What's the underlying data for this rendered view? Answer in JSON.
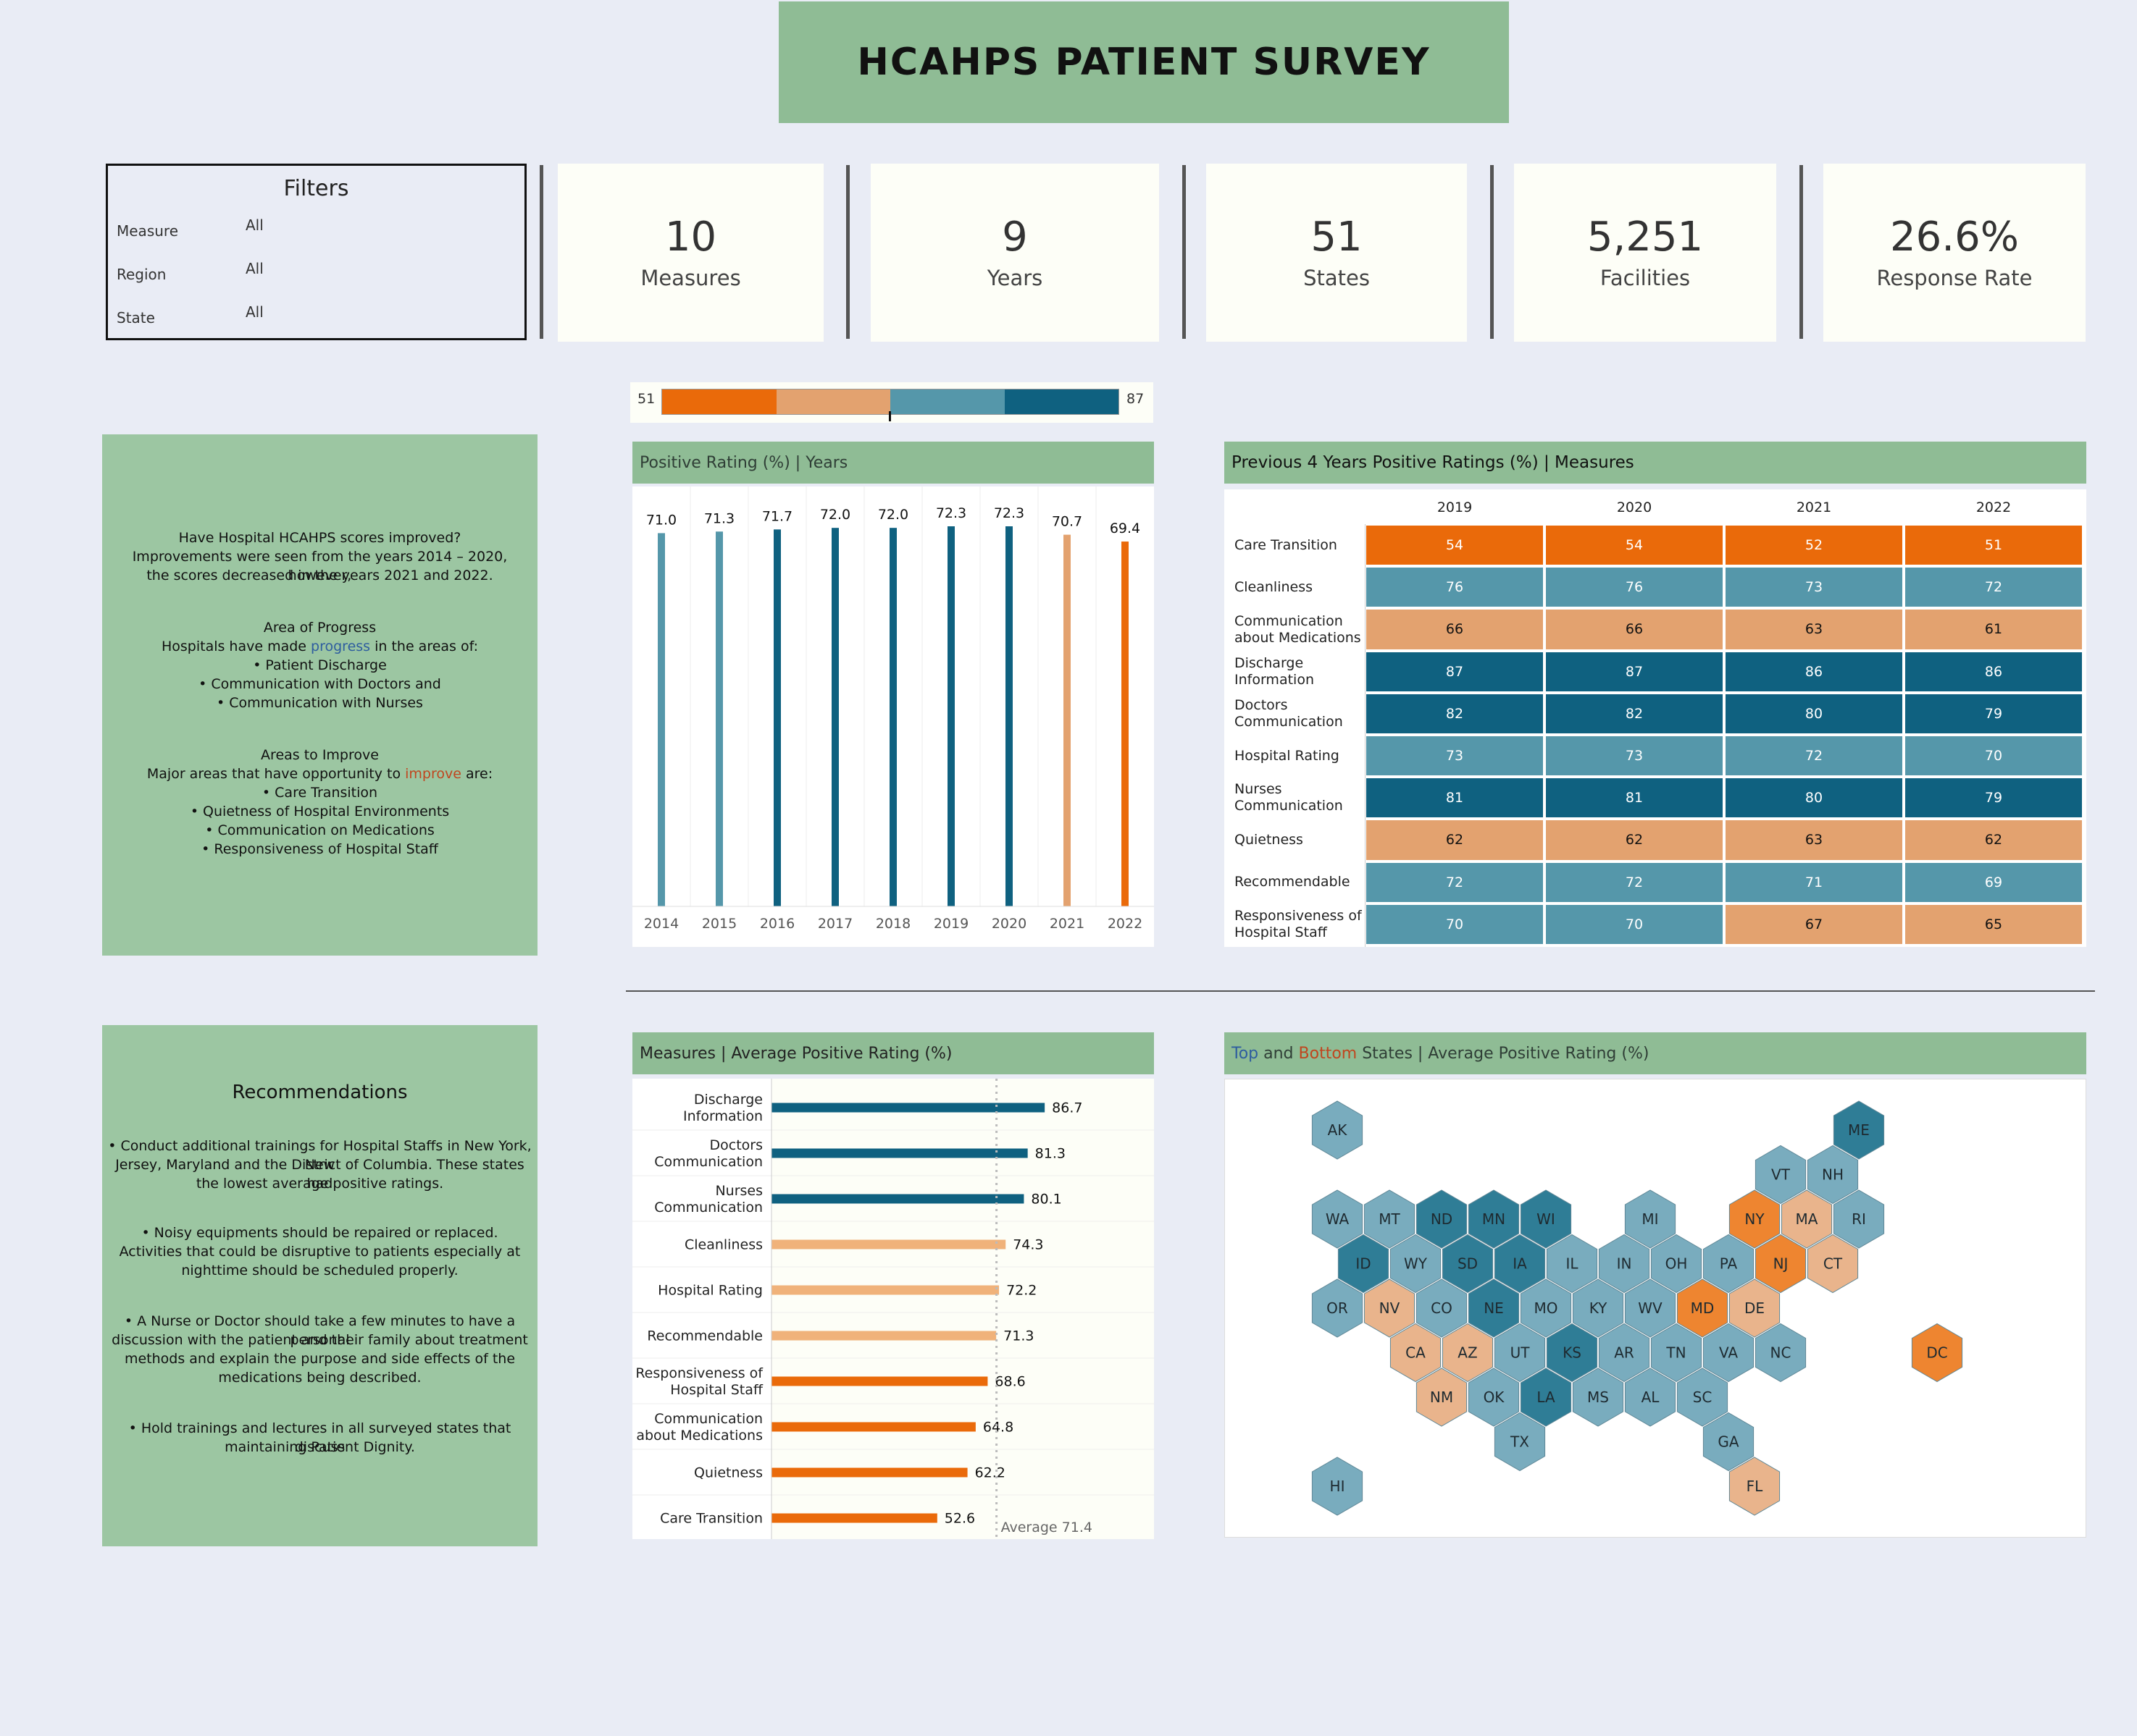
{
  "title": "HCAHPS PATIENT SURVEY",
  "filters": {
    "title": "Filters",
    "items": [
      {
        "label": "Measure",
        "value": "All"
      },
      {
        "label": "Region",
        "value": "All"
      },
      {
        "label": "State",
        "value": "All"
      }
    ]
  },
  "kpis": [
    {
      "value": "10",
      "label": "Measures"
    },
    {
      "value": "9",
      "label": "Years"
    },
    {
      "value": "51",
      "label": "States"
    },
    {
      "value": "5,251",
      "label": "Facilities"
    },
    {
      "value": "26.6%",
      "label": "Response Rate"
    }
  ],
  "color_legend": {
    "min": "51",
    "max": "87",
    "colors": [
      "#ea6a0a",
      "#e3a26f",
      "#5597aa",
      "#0f6180"
    ]
  },
  "colors": {
    "dark_blue": "#0f6180",
    "mid_blue": "#5597aa",
    "light_orange": "#e3a26f",
    "orange": "#ea6a0a",
    "header_green": "#8fbc95",
    "note_green": "#9cc6a2",
    "progress": "#2e5d9f",
    "improve": "#c0461f"
  },
  "insights": {
    "q_title": "Have Hospital HCAHPS scores improved?",
    "q_line1": "Improvements were seen from the years 2014 – 2020, however,",
    "q_line2": "the scores decreased in the years 2021 and 2022.",
    "progress_title": "Area of Progress",
    "progress_pre": "Hospitals have made ",
    "progress_word": "progress",
    "progress_post": " in the areas of:",
    "progress_items": [
      "• Patient Discharge",
      "• Communication with Doctors and",
      "• Communication with Nurses"
    ],
    "improve_title": "Areas to Improve",
    "improve_pre": "Major areas that have opportunity to ",
    "improve_word": "improve",
    "improve_post": " are:",
    "improve_items": [
      "• Care Transition",
      "• Quietness of Hospital Environments",
      "• Communication on Medications",
      "• Responsiveness of Hospital Staff"
    ]
  },
  "recommendations": {
    "title": "Recommendations",
    "items": [
      [
        "• Conduct additional trainings for Hospital Staffs in New York, New",
        "Jersey, Maryland and the District of Columbia. These states had",
        "the lowest average positive ratings."
      ],
      [
        "• Noisy equipments should be repaired or replaced.",
        "Activities that could be disruptive to patients especially at",
        "nighttime should be scheduled properly."
      ],
      [
        "• A Nurse or Doctor should take a few minutes to have a personal",
        "discussion with the patient and their family about treatment",
        "methods and explain the purpose and side effects of the",
        "medications being described."
      ],
      [
        "• Hold trainings and lectures in all surveyed states that discuss",
        "maintaining Patient Dignity."
      ]
    ]
  },
  "chart_data": [
    {
      "type": "bar",
      "title": "Positive Rating (%) | Years",
      "categories": [
        "2014",
        "2015",
        "2016",
        "2017",
        "2018",
        "2019",
        "2020",
        "2021",
        "2022"
      ],
      "values": [
        71.0,
        71.3,
        71.7,
        72.0,
        72.0,
        72.3,
        72.3,
        70.7,
        69.4
      ],
      "value_labels": [
        "71.0",
        "71.3",
        "71.7",
        "72.0",
        "72.0",
        "72.3",
        "72.3",
        "70.7",
        "69.4"
      ],
      "bar_colors": [
        "#5597aa",
        "#5597aa",
        "#0f6180",
        "#0f6180",
        "#0f6180",
        "#0f6180",
        "#0f6180",
        "#e3a26f",
        "#ea6a0a"
      ],
      "ylim": [
        0,
        72.3
      ]
    },
    {
      "type": "heatmap",
      "title": "Previous 4 Years Positive Ratings (%) | Measures",
      "columns": [
        "2019",
        "2020",
        "2021",
        "2022"
      ],
      "rows": [
        {
          "name": [
            "Care Transition"
          ],
          "values": [
            54,
            54,
            52,
            51
          ]
        },
        {
          "name": [
            "Cleanliness"
          ],
          "values": [
            76,
            76,
            73,
            72
          ]
        },
        {
          "name": [
            "Communication",
            "about Medications"
          ],
          "values": [
            66,
            66,
            63,
            61
          ]
        },
        {
          "name": [
            "Discharge",
            "Information"
          ],
          "values": [
            87,
            87,
            86,
            86
          ]
        },
        {
          "name": [
            "Doctors",
            "Communication"
          ],
          "values": [
            82,
            82,
            80,
            79
          ]
        },
        {
          "name": [
            "Hospital Rating"
          ],
          "values": [
            73,
            73,
            72,
            70
          ]
        },
        {
          "name": [
            "Nurses",
            "Communication"
          ],
          "values": [
            81,
            81,
            80,
            79
          ]
        },
        {
          "name": [
            "Quietness"
          ],
          "values": [
            62,
            62,
            63,
            62
          ]
        },
        {
          "name": [
            "Recommendable"
          ],
          "values": [
            72,
            72,
            71,
            69
          ]
        },
        {
          "name": [
            "Responsiveness of",
            "Hospital Staff"
          ],
          "values": [
            70,
            70,
            67,
            65
          ]
        }
      ]
    },
    {
      "type": "bar",
      "orientation": "horizontal",
      "title": "Measures | Average Positive Rating (%)",
      "categories": [
        [
          "Discharge",
          "Information"
        ],
        [
          "Doctors",
          "Communication"
        ],
        [
          "Nurses",
          "Communication"
        ],
        [
          "Cleanliness"
        ],
        [
          "Hospital Rating"
        ],
        [
          "Recommendable"
        ],
        [
          "Responsiveness of",
          "Hospital Staff"
        ],
        [
          "Communication",
          "about Medications"
        ],
        [
          "Quietness"
        ],
        [
          "Care Transition"
        ]
      ],
      "values": [
        86.7,
        81.3,
        80.1,
        74.3,
        72.2,
        71.3,
        68.6,
        64.8,
        62.2,
        52.6
      ],
      "value_labels": [
        "86.7",
        "81.3",
        "80.1",
        "74.3",
        "72.2",
        "71.3",
        "68.6",
        "64.8",
        "62.2",
        "52.6"
      ],
      "bar_colors": [
        "#0f6180",
        "#0f6180",
        "#0f6180",
        "#f0b27a",
        "#f0b27a",
        "#f0b27a",
        "#ea6a0a",
        "#ea6a0a",
        "#ea6a0a",
        "#ea6a0a"
      ],
      "reference_line": {
        "value": 71.4,
        "label": "Average 71.4"
      },
      "xlim": [
        0,
        90
      ]
    },
    {
      "type": "map",
      "title_parts": [
        "Top",
        " and ",
        "Bottom",
        " States | Average Positive Rating (%)"
      ],
      "states": [
        {
          "abbr": "AK",
          "col": 0,
          "row": 0,
          "color": "#79acbe"
        },
        {
          "abbr": "ME",
          "col": 10,
          "row": 0,
          "color": "#2f7d96"
        },
        {
          "abbr": "VT",
          "col": 8,
          "row": 1,
          "color": "#79acbe"
        },
        {
          "abbr": "NH",
          "col": 9,
          "row": 1,
          "color": "#79acbe"
        },
        {
          "abbr": "WA",
          "col": 0,
          "row": 2,
          "color": "#79acbe"
        },
        {
          "abbr": "MT",
          "col": 1,
          "row": 2,
          "color": "#79acbe"
        },
        {
          "abbr": "ND",
          "col": 2,
          "row": 2,
          "color": "#2f7d96"
        },
        {
          "abbr": "MN",
          "col": 3,
          "row": 2,
          "color": "#2f7d96"
        },
        {
          "abbr": "WI",
          "col": 4,
          "row": 2,
          "color": "#2f7d96"
        },
        {
          "abbr": "MI",
          "col": 6,
          "row": 2,
          "color": "#79acbe"
        },
        {
          "abbr": "NY",
          "col": 8,
          "row": 2,
          "color": "#ee8530"
        },
        {
          "abbr": "MA",
          "col": 9,
          "row": 2,
          "color": "#e9b48c"
        },
        {
          "abbr": "RI",
          "col": 10,
          "row": 2,
          "color": "#79acbe"
        },
        {
          "abbr": "ID",
          "col": 0,
          "row": 3,
          "color": "#2f7d96"
        },
        {
          "abbr": "WY",
          "col": 1,
          "row": 3,
          "color": "#79acbe"
        },
        {
          "abbr": "SD",
          "col": 2,
          "row": 3,
          "color": "#2f7d96"
        },
        {
          "abbr": "IA",
          "col": 3,
          "row": 3,
          "color": "#2f7d96"
        },
        {
          "abbr": "IL",
          "col": 4,
          "row": 3,
          "color": "#79acbe"
        },
        {
          "abbr": "IN",
          "col": 5,
          "row": 3,
          "color": "#79acbe"
        },
        {
          "abbr": "OH",
          "col": 6,
          "row": 3,
          "color": "#79acbe"
        },
        {
          "abbr": "PA",
          "col": 7,
          "row": 3,
          "color": "#79acbe"
        },
        {
          "abbr": "NJ",
          "col": 8,
          "row": 3,
          "color": "#ee8530"
        },
        {
          "abbr": "CT",
          "col": 9,
          "row": 3,
          "color": "#e9b48c"
        },
        {
          "abbr": "OR",
          "col": 0,
          "row": 4,
          "color": "#79acbe"
        },
        {
          "abbr": "NV",
          "col": 1,
          "row": 4,
          "color": "#e9b48c"
        },
        {
          "abbr": "CO",
          "col": 2,
          "row": 4,
          "color": "#79acbe"
        },
        {
          "abbr": "NE",
          "col": 3,
          "row": 4,
          "color": "#2f7d96"
        },
        {
          "abbr": "MO",
          "col": 4,
          "row": 4,
          "color": "#79acbe"
        },
        {
          "abbr": "KY",
          "col": 5,
          "row": 4,
          "color": "#79acbe"
        },
        {
          "abbr": "WV",
          "col": 6,
          "row": 4,
          "color": "#79acbe"
        },
        {
          "abbr": "MD",
          "col": 7,
          "row": 4,
          "color": "#ee8530"
        },
        {
          "abbr": "DE",
          "col": 8,
          "row": 4,
          "color": "#e9b48c"
        },
        {
          "abbr": "CA",
          "col": 1,
          "row": 5,
          "color": "#e9b48c"
        },
        {
          "abbr": "AZ",
          "col": 2,
          "row": 5,
          "color": "#e9b48c"
        },
        {
          "abbr": "UT",
          "col": 3,
          "row": 5,
          "color": "#79acbe"
        },
        {
          "abbr": "KS",
          "col": 4,
          "row": 5,
          "color": "#2f7d96"
        },
        {
          "abbr": "AR",
          "col": 5,
          "row": 5,
          "color": "#79acbe"
        },
        {
          "abbr": "TN",
          "col": 6,
          "row": 5,
          "color": "#79acbe"
        },
        {
          "abbr": "VA",
          "col": 7,
          "row": 5,
          "color": "#79acbe"
        },
        {
          "abbr": "NC",
          "col": 8,
          "row": 5,
          "color": "#79acbe"
        },
        {
          "abbr": "DC",
          "col": 11,
          "row": 5,
          "color": "#ee8530"
        },
        {
          "abbr": "NM",
          "col": 2,
          "row": 6,
          "color": "#e9b48c"
        },
        {
          "abbr": "OK",
          "col": 3,
          "row": 6,
          "color": "#79acbe"
        },
        {
          "abbr": "LA",
          "col": 4,
          "row": 6,
          "color": "#2f7d96"
        },
        {
          "abbr": "MS",
          "col": 5,
          "row": 6,
          "color": "#79acbe"
        },
        {
          "abbr": "AL",
          "col": 6,
          "row": 6,
          "color": "#79acbe"
        },
        {
          "abbr": "SC",
          "col": 7,
          "row": 6,
          "color": "#79acbe"
        },
        {
          "abbr": "TX",
          "col": 3,
          "row": 7,
          "color": "#79acbe"
        },
        {
          "abbr": "GA",
          "col": 7,
          "row": 7,
          "color": "#79acbe"
        },
        {
          "abbr": "HI",
          "col": 0,
          "row": 8,
          "color": "#79acbe"
        },
        {
          "abbr": "FL",
          "col": 8,
          "row": 8,
          "color": "#e9b48c"
        }
      ]
    }
  ]
}
